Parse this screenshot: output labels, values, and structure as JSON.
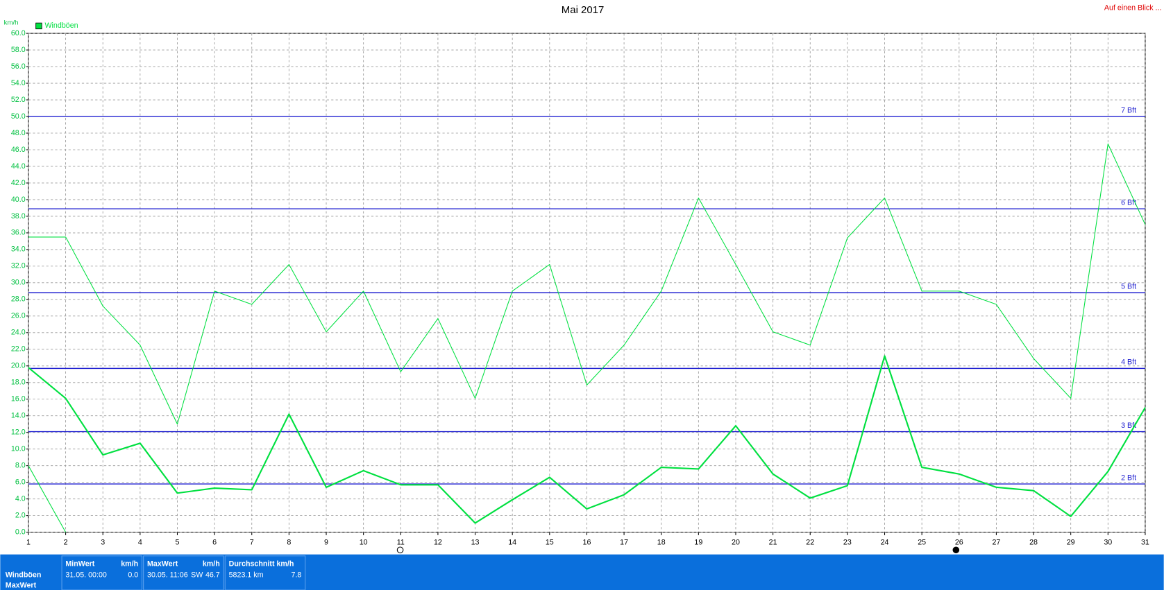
{
  "chart_data": {
    "type": "line",
    "title": "Mai 2017",
    "y_label": "km/h",
    "corner_link": "Auf einen Blick ...",
    "x": [
      1,
      2,
      3,
      4,
      5,
      6,
      7,
      8,
      9,
      10,
      11,
      12,
      13,
      14,
      15,
      16,
      17,
      18,
      19,
      20,
      21,
      22,
      23,
      24,
      25,
      26,
      27,
      28,
      29,
      30,
      31
    ],
    "xlim": [
      1,
      31
    ],
    "xticks": [
      1,
      2,
      3,
      4,
      5,
      6,
      7,
      8,
      9,
      10,
      11,
      12,
      13,
      14,
      15,
      16,
      17,
      18,
      19,
      20,
      21,
      22,
      23,
      24,
      25,
      26,
      27,
      28,
      29,
      30,
      31
    ],
    "ylim": [
      0,
      60
    ],
    "yticks": [
      {
        "value": 0,
        "label": "0.0"
      },
      {
        "value": 2,
        "label": "2.0"
      },
      {
        "value": 4,
        "label": "4.0"
      },
      {
        "value": 6,
        "label": "6.0"
      },
      {
        "value": 8,
        "label": "8.0"
      },
      {
        "value": 10,
        "label": "10.0"
      },
      {
        "value": 12,
        "label": "12.0"
      },
      {
        "value": 14,
        "label": "14.0"
      },
      {
        "value": 16,
        "label": "16.0"
      },
      {
        "value": 18,
        "label": "18.0"
      },
      {
        "value": 20,
        "label": "20.0"
      },
      {
        "value": 22,
        "label": "22.0"
      },
      {
        "value": 24,
        "label": "24.0"
      },
      {
        "value": 26,
        "label": "26.0"
      },
      {
        "value": 28,
        "label": "28.0"
      },
      {
        "value": 30,
        "label": "30.0"
      },
      {
        "value": 32,
        "label": "32.0"
      },
      {
        "value": 34,
        "label": "34.0"
      },
      {
        "value": 36,
        "label": "36.0"
      },
      {
        "value": 38,
        "label": "38.0"
      },
      {
        "value": 40,
        "label": "40.0"
      },
      {
        "value": 42,
        "label": "42.0"
      },
      {
        "value": 44,
        "label": "44.0"
      },
      {
        "value": 46,
        "label": "46.0"
      },
      {
        "value": 48,
        "label": "48.0"
      },
      {
        "value": 50,
        "label": "50.0"
      },
      {
        "value": 52,
        "label": "52.0"
      },
      {
        "value": 54,
        "label": "54.0"
      },
      {
        "value": 56,
        "label": "56.0"
      },
      {
        "value": 58,
        "label": "58.0"
      },
      {
        "value": 60,
        "label": "60.0"
      }
    ],
    "grid": true,
    "legend": "top-left",
    "series": [
      {
        "name": "Windböen",
        "color": "#00e040",
        "width": 1,
        "values": [
          35.5,
          35.5,
          27.2,
          22.5,
          13.0,
          29.0,
          27.4,
          32.2,
          24.1,
          29.0,
          19.3,
          25.7,
          16.1,
          29.0,
          32.2,
          17.7,
          22.5,
          29.0,
          40.2,
          32.2,
          24.1,
          22.5,
          35.4,
          40.2,
          29.0,
          29.0,
          27.4,
          20.9,
          16.1,
          46.7,
          37.0
        ]
      },
      {
        "color": "#00e040",
        "width": 2,
        "values": [
          19.8,
          16.1,
          9.3,
          10.7,
          4.7,
          5.3,
          5.1,
          14.2,
          5.4,
          7.4,
          5.7,
          5.7,
          1.1,
          3.9,
          6.6,
          2.8,
          4.5,
          7.8,
          7.6,
          12.8,
          7.0,
          4.1,
          5.6,
          21.2,
          7.8,
          7.0,
          5.4,
          5.0,
          1.9,
          7.3,
          15.0
        ]
      },
      {
        "color": "#00e040",
        "width": 1,
        "values": [
          8.0,
          0.0,
          null,
          null,
          null,
          null,
          null,
          null,
          null,
          null,
          null,
          null,
          null,
          null,
          null,
          null,
          null,
          null,
          null,
          null,
          null,
          null,
          null,
          null,
          null,
          null,
          null,
          null,
          null,
          null,
          null
        ]
      }
    ],
    "reference_lines": [
      {
        "label": "2 Bft",
        "value": 5.8
      },
      {
        "label": "3 Bft",
        "value": 12.1
      },
      {
        "label": "4 Bft",
        "value": 19.7
      },
      {
        "label": "5 Bft",
        "value": 28.8
      },
      {
        "label": "6 Bft",
        "value": 38.9
      },
      {
        "label": "7 Bft",
        "value": 50.0
      }
    ],
    "reference_color": "#2020d0"
  },
  "stats": {
    "row_labels": [
      "Windböen",
      "MaxWert"
    ],
    "min": {
      "header": "MinWert",
      "unit": "km/h",
      "time": "31.05.  00:00",
      "value": "0.0"
    },
    "max": {
      "header": "MaxWert",
      "unit": "km/h",
      "time": "30.05.  11:06",
      "dir": "SW",
      "value": "46.7"
    },
    "avg": {
      "header": "Durchschnitt km/h",
      "distance": "5823.1 km",
      "value": "7.8"
    }
  }
}
